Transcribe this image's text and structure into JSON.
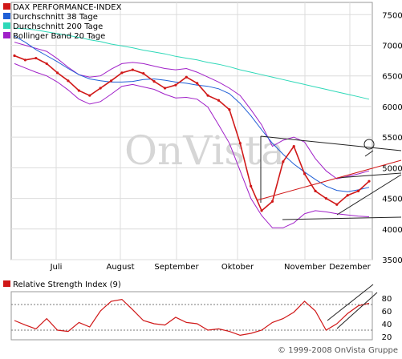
{
  "chart_data": [
    {
      "type": "line",
      "title": "",
      "xlabel": "",
      "ylabel": "",
      "watermark": "OnVista",
      "legend_position": "top-left",
      "legend": [
        {
          "label": "DAX PERFORMANCE-INDEX",
          "color": "#d01818"
        },
        {
          "label": "Durchschnitt 38 Tage",
          "color": "#1f5fd6"
        },
        {
          "label": "Durchschnitt 200 Tage",
          "color": "#2ed8b8"
        },
        {
          "label": "Bollinger Band 20 Tage",
          "color": "#a020c8"
        }
      ],
      "x_ticks": [
        "Juli",
        "August",
        "September",
        "Oktober",
        "November",
        "Dezember"
      ],
      "y_ticks": [
        3500,
        4000,
        4500,
        5000,
        5500,
        6000,
        6500,
        7000,
        7500
      ],
      "ylim": [
        3500,
        7700
      ],
      "grid": true,
      "series": [
        {
          "name": "DAX PERFORMANCE-INDEX",
          "color": "#d01818",
          "values": [
            6830,
            6760,
            6790,
            6700,
            6550,
            6420,
            6260,
            6180,
            6300,
            6420,
            6550,
            6600,
            6540,
            6410,
            6300,
            6350,
            6480,
            6380,
            6180,
            6100,
            5950,
            5400,
            4700,
            4300,
            4450,
            5100,
            5350,
            4900,
            4620,
            4500,
            4400,
            4550,
            4620,
            4780
          ]
        },
        {
          "name": "Durchschnitt 38 Tage",
          "color": "#1f5fd6",
          "values": [
            7150,
            7050,
            6930,
            6830,
            6730,
            6620,
            6520,
            6450,
            6420,
            6400,
            6400,
            6410,
            6440,
            6450,
            6430,
            6400,
            6380,
            6350,
            6330,
            6290,
            6210,
            6050,
            5850,
            5620,
            5400,
            5220,
            5060,
            4930,
            4810,
            4700,
            4630,
            4610,
            4640,
            4680
          ]
        },
        {
          "name": "Durchschnitt 200 Tage",
          "color": "#2ed8b8",
          "values": [
            7280,
            7270,
            7250,
            7220,
            7190,
            7160,
            7130,
            7090,
            7060,
            7020,
            6990,
            6960,
            6920,
            6890,
            6860,
            6820,
            6790,
            6760,
            6720,
            6690,
            6650,
            6600,
            6560,
            6520,
            6480,
            6440,
            6400,
            6360,
            6320,
            6280,
            6240,
            6200,
            6160,
            6120
          ]
        },
        {
          "name": "Bollinger Band 20 Tage (oben)",
          "color": "#a020c8",
          "values": [
            7050,
            7000,
            6950,
            6900,
            6780,
            6640,
            6520,
            6480,
            6500,
            6610,
            6700,
            6720,
            6700,
            6660,
            6620,
            6600,
            6620,
            6560,
            6480,
            6400,
            6300,
            6180,
            5950,
            5700,
            5350,
            5450,
            5500,
            5420,
            5150,
            4950,
            4820,
            4860,
            4900,
            4950
          ]
        },
        {
          "name": "Bollinger Band 20 Tage (unten)",
          "color": "#a020c8",
          "values": [
            6700,
            6630,
            6560,
            6500,
            6400,
            6270,
            6120,
            6040,
            6080,
            6200,
            6330,
            6360,
            6320,
            6280,
            6200,
            6140,
            6150,
            6120,
            5990,
            5700,
            5400,
            4950,
            4500,
            4220,
            4020,
            4020,
            4100,
            4250,
            4300,
            4280,
            4250,
            4230,
            4210,
            4200
          ]
        }
      ]
    },
    {
      "type": "line",
      "title": "Relative Strength Index (9)",
      "xlabel": "",
      "ylabel": "",
      "y_ticks": [
        20,
        40,
        60,
        80
      ],
      "ylim": [
        15,
        90
      ],
      "reference_lines": [
        30,
        70
      ],
      "series": [
        {
          "name": "Relative Strength Index (9)",
          "color": "#d01818",
          "values": [
            45,
            38,
            32,
            48,
            30,
            28,
            42,
            35,
            60,
            75,
            78,
            62,
            45,
            40,
            38,
            50,
            42,
            40,
            30,
            32,
            28,
            22,
            25,
            30,
            42,
            48,
            58,
            75,
            60,
            30,
            40,
            56,
            68,
            72
          ]
        }
      ]
    }
  ],
  "copyright": "© 1999-2008 OnVista Gruppe"
}
